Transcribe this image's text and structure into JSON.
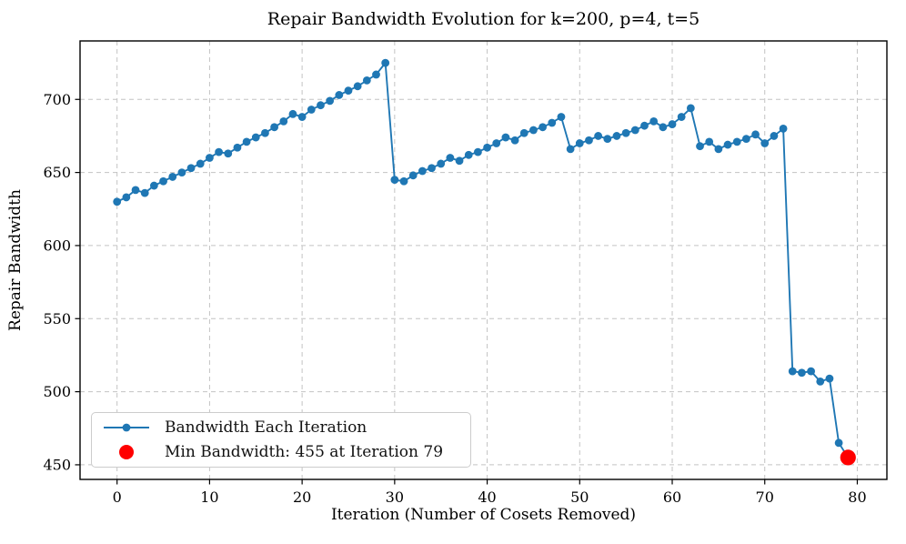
{
  "chart_data": {
    "type": "line",
    "title": "Repair Bandwidth Evolution for k=200, p=4, t=5",
    "xlabel": "Iteration (Number of Cosets Removed)",
    "ylabel": "Repair Bandwidth",
    "x": [
      0,
      1,
      2,
      3,
      4,
      5,
      6,
      7,
      8,
      9,
      10,
      11,
      12,
      13,
      14,
      15,
      16,
      17,
      18,
      19,
      20,
      21,
      22,
      23,
      24,
      25,
      26,
      27,
      28,
      29,
      30,
      31,
      32,
      33,
      34,
      35,
      36,
      37,
      38,
      39,
      40,
      41,
      42,
      43,
      44,
      45,
      46,
      47,
      48,
      49,
      50,
      51,
      52,
      53,
      54,
      55,
      56,
      57,
      58,
      59,
      60,
      61,
      62,
      63,
      64,
      65,
      66,
      67,
      68,
      69,
      70,
      71,
      72,
      73,
      74,
      75,
      76,
      77,
      78,
      79
    ],
    "values": [
      630,
      633,
      638,
      636,
      641,
      644,
      647,
      650,
      653,
      656,
      660,
      664,
      663,
      667,
      671,
      674,
      677,
      681,
      685,
      690,
      688,
      693,
      696,
      699,
      703,
      706,
      709,
      713,
      717,
      725,
      645,
      644,
      648,
      651,
      653,
      656,
      660,
      658,
      662,
      664,
      667,
      670,
      674,
      672,
      677,
      679,
      681,
      684,
      688,
      666,
      670,
      672,
      675,
      673,
      675,
      677,
      679,
      682,
      685,
      681,
      683,
      688,
      694,
      668,
      671,
      666,
      669,
      671,
      673,
      676,
      670,
      675,
      680,
      514,
      513,
      514,
      507,
      509,
      465,
      455
    ],
    "min_point": {
      "iteration": 79,
      "value": 455
    },
    "xticks": [
      0,
      10,
      20,
      30,
      40,
      50,
      60,
      70,
      80
    ],
    "yticks": [
      450,
      500,
      550,
      600,
      650,
      700
    ],
    "xlim": [
      -4,
      83.2
    ],
    "ylim": [
      440,
      740
    ],
    "grid": true,
    "grid_style": "dashed",
    "legend_position": "lower left",
    "legend": [
      {
        "label": "Bandwidth Each Iteration",
        "marker": "line-dot",
        "color": "#1f77b4"
      },
      {
        "label": "Min Bandwidth: 455 at Iteration 79",
        "marker": "dot",
        "color": "#ff0000"
      }
    ],
    "colors": {
      "line": "#1f77b4",
      "marker": "#1f77b4",
      "min_marker": "#ff0000",
      "grid": "#c3c3c3",
      "spine": "#000000",
      "text": "#000000"
    }
  }
}
